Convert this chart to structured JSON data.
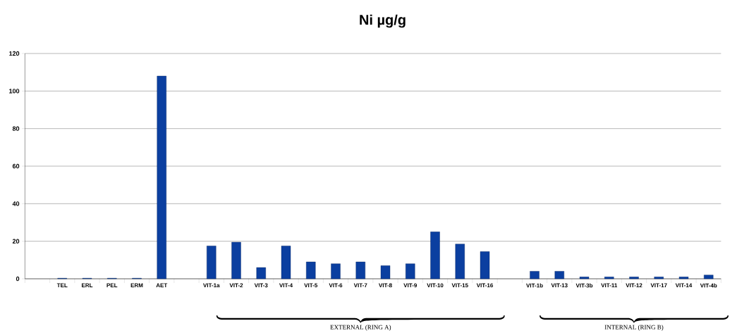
{
  "chart_data": {
    "type": "bar",
    "title": "Ni µg/g",
    "categories": [
      null,
      "TEL",
      "ERL",
      "PEL",
      "ERM",
      "AET",
      null,
      "VIT-1a",
      "VIT-2",
      "VIT-3",
      "VIT-4",
      "VIT-5",
      "VIT-6",
      "VIT-7",
      "VIT-8",
      "VIT-9",
      "VIT-10",
      "VIT-15",
      "VIT-16",
      null,
      "VIT-1b",
      "VIT-13",
      "VIT-3b",
      "VIT-11",
      "VIT-12",
      "VIT-17",
      "VIT-14",
      "VIT-4b"
    ],
    "values": [
      null,
      0.3,
      0.3,
      0.3,
      0.3,
      108,
      null,
      17.5,
      19.5,
      6,
      17.5,
      9,
      8,
      9,
      7,
      8,
      25,
      18.5,
      14.5,
      null,
      4,
      4,
      1,
      1,
      1,
      1,
      1,
      2
    ],
    "color": "#0b3fa0",
    "ylim": [
      0,
      120
    ],
    "yticks": [
      0,
      20,
      40,
      60,
      80,
      100,
      120
    ],
    "grid": "y",
    "annotations": [
      "EXTERNAL (RING A)",
      "INTERNAL (RING B)"
    ]
  }
}
